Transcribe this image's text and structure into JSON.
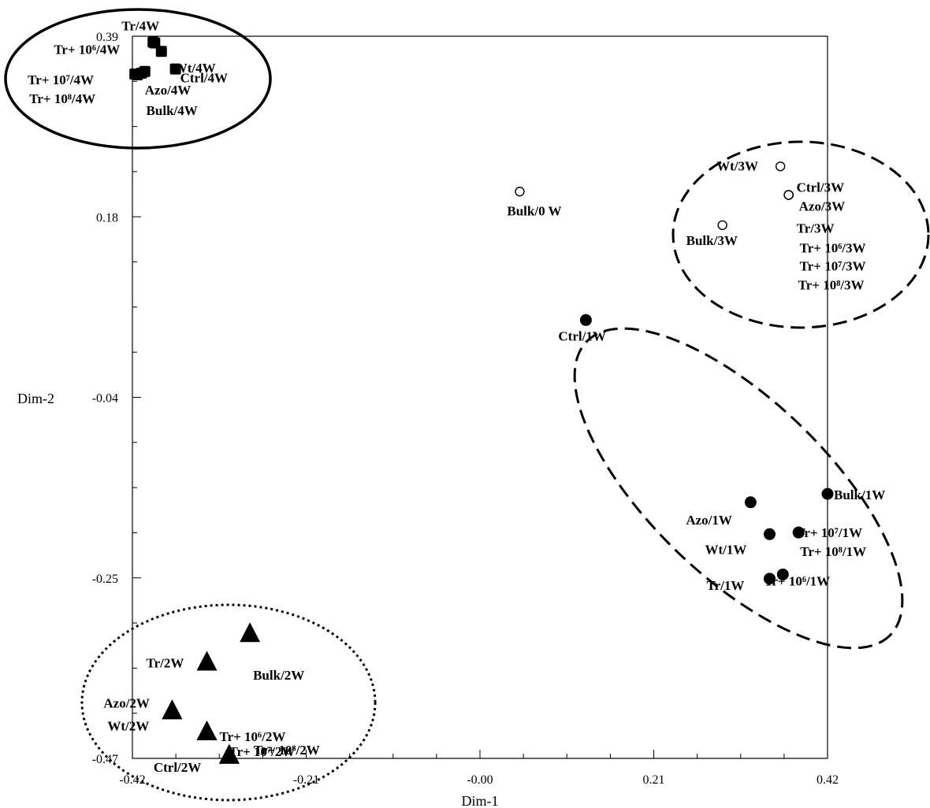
{
  "chart_data": {
    "type": "scatter",
    "title": "",
    "xlabel": "Dim-1",
    "ylabel": "Dim-2",
    "xlim": [
      -0.42,
      0.42
    ],
    "ylim": [
      -0.47,
      0.39
    ],
    "x_ticks": [
      "-0.42",
      "-0.21",
      "-0.00",
      "0.21",
      "0.42"
    ],
    "y_ticks": [
      "0.39",
      "0.18",
      "-0.04",
      "-0.25",
      "-0.47"
    ],
    "grid": false,
    "series": [
      {
        "marker": "filled-square",
        "points": [
          {
            "label": "Tr/4W",
            "x": -0.395,
            "y": 0.383
          },
          {
            "label": "Tr+ 10⁶/4W",
            "x": -0.393,
            "y": 0.382
          },
          {
            "label": "Wt/4W",
            "x": -0.385,
            "y": 0.372
          },
          {
            "label": "Ctrl/4W",
            "x": -0.368,
            "y": 0.351
          },
          {
            "label": "Tr+ 10⁷/4W",
            "x": -0.417,
            "y": 0.345
          },
          {
            "label": "Tr+ 10⁸/4W",
            "x": -0.414,
            "y": 0.344
          },
          {
            "label": "Azo/4W",
            "x": -0.405,
            "y": 0.348
          },
          {
            "label": "Bulk/4W",
            "x": -0.409,
            "y": 0.346
          }
        ]
      },
      {
        "marker": "open-circle",
        "points": [
          {
            "label": "Bulk/0 W",
            "x": 0.048,
            "y": 0.205
          },
          {
            "label": "Wt/3W",
            "x": 0.363,
            "y": 0.235
          },
          {
            "label": "Ctrl/3W",
            "x": 0.373,
            "y": 0.201
          },
          {
            "label": "Azo/3W",
            "x": 0.373,
            "y": 0.201
          },
          {
            "label": "Tr/3W",
            "x": 0.373,
            "y": 0.201
          },
          {
            "label": "Tr+ 10⁶/3W",
            "x": 0.373,
            "y": 0.201
          },
          {
            "label": "Tr+ 10⁷/3W",
            "x": 0.373,
            "y": 0.201
          },
          {
            "label": "Tr+ 10⁸/3W",
            "x": 0.373,
            "y": 0.201
          },
          {
            "label": "Bulk/3W",
            "x": 0.293,
            "y": 0.165
          }
        ]
      },
      {
        "marker": "filled-circle",
        "points": [
          {
            "label": "Ctrl/1W",
            "x": 0.128,
            "y": 0.052
          },
          {
            "label": "Bulk/1W",
            "x": 0.42,
            "y": -0.155
          },
          {
            "label": "Azo/1W",
            "x": 0.327,
            "y": -0.165
          },
          {
            "label": "Wt/1W",
            "x": 0.35,
            "y": -0.203
          },
          {
            "label": "Tr+ 10⁷/1W",
            "x": 0.385,
            "y": -0.201
          },
          {
            "label": "Tr+ 10⁸/1W",
            "x": 0.385,
            "y": -0.201
          },
          {
            "label": "Tr/1W",
            "x": 0.35,
            "y": -0.256
          },
          {
            "label": "Tr+ 10⁶/1W",
            "x": 0.366,
            "y": -0.251
          }
        ]
      },
      {
        "marker": "filled-triangle",
        "points": [
          {
            "label": "Bulk/2W",
            "x": -0.278,
            "y": -0.322
          },
          {
            "label": "Tr/2W",
            "x": -0.33,
            "y": -0.356
          },
          {
            "label": "Azo/2W",
            "x": -0.372,
            "y": -0.414
          },
          {
            "label": "Wt/2W",
            "x": -0.372,
            "y": -0.414
          },
          {
            "label": "Tr+ 10⁶/2W",
            "x": -0.33,
            "y": -0.439
          },
          {
            "label": "Tr+ 10⁷/2W",
            "x": -0.33,
            "y": -0.439
          },
          {
            "label": "Tr+ 10⁸/2W",
            "x": -0.303,
            "y": -0.467
          },
          {
            "label": "Ctrl/2W",
            "x": -0.303,
            "y": -0.467
          }
        ]
      }
    ]
  }
}
